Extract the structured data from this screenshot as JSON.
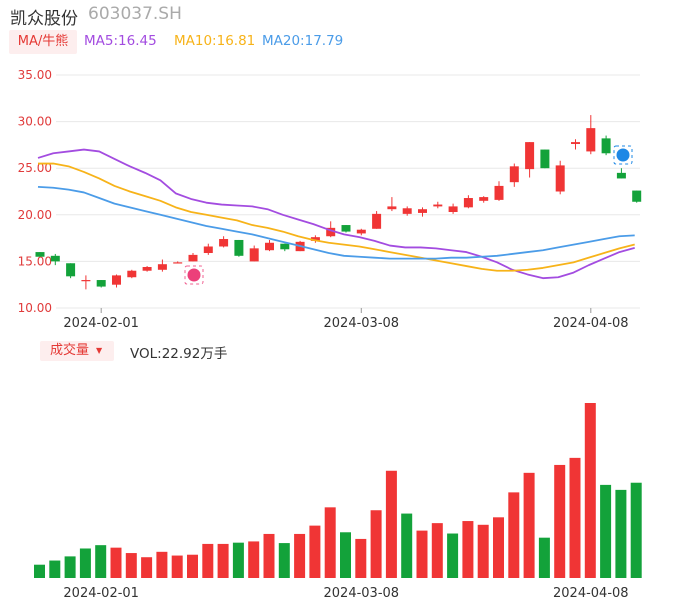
{
  "header": {
    "name": "凯众股份",
    "code": "603037.SH"
  },
  "ma_legend": {
    "tag": "MA/牛熊",
    "ma5": "MA5:16.45",
    "ma10": "MA10:16.81",
    "ma20": "MA20:17.79"
  },
  "volume_legend": {
    "tag": "成交量",
    "value": "VOL:22.92万手"
  },
  "colors": {
    "up": "#f03535",
    "down": "#13a23a",
    "ma5": "#a34ce0",
    "ma10": "#f7b319",
    "ma20": "#4b9ce8",
    "ma_label": "#a34ce0"
  },
  "chart_data": [
    {
      "type": "candlestick",
      "title": "",
      "ylim": [
        10,
        35
      ],
      "yticks": [
        "35.00",
        "30.00",
        "25.00",
        "20.00",
        "15.00",
        "10.00"
      ],
      "xtick_labels": [
        {
          "label": "2024-02-01",
          "index": 4
        },
        {
          "label": "2024-03-08",
          "index": 21
        },
        {
          "label": "2024-04-08",
          "index": 36
        }
      ],
      "candles": [
        {
          "o": 16.0,
          "h": 16.0,
          "l": 15.5,
          "c": 15.5
        },
        {
          "o": 15.6,
          "h": 15.8,
          "l": 14.6,
          "c": 15.0
        },
        {
          "o": 14.8,
          "h": 14.8,
          "l": 13.2,
          "c": 13.4
        },
        {
          "o": 12.9,
          "h": 13.5,
          "l": 12.0,
          "c": 13.0
        },
        {
          "o": 13.0,
          "h": 13.0,
          "l": 12.2,
          "c": 12.3
        },
        {
          "o": 12.5,
          "h": 13.6,
          "l": 12.2,
          "c": 13.5
        },
        {
          "o": 13.3,
          "h": 14.1,
          "l": 13.2,
          "c": 14.0
        },
        {
          "o": 14.0,
          "h": 14.5,
          "l": 13.9,
          "c": 14.4
        },
        {
          "o": 14.1,
          "h": 15.2,
          "l": 13.9,
          "c": 14.7
        },
        {
          "o": 14.8,
          "h": 15.0,
          "l": 14.8,
          "c": 14.9
        },
        {
          "o": 15.0,
          "h": 15.9,
          "l": 15.0,
          "c": 15.7
        },
        {
          "o": 15.9,
          "h": 16.9,
          "l": 15.7,
          "c": 16.6
        },
        {
          "o": 16.6,
          "h": 17.7,
          "l": 16.5,
          "c": 17.4
        },
        {
          "o": 17.3,
          "h": 17.3,
          "l": 15.5,
          "c": 15.6
        },
        {
          "o": 15.0,
          "h": 16.7,
          "l": 15.0,
          "c": 16.4
        },
        {
          "o": 16.2,
          "h": 17.3,
          "l": 16.1,
          "c": 17.0
        },
        {
          "o": 16.9,
          "h": 16.9,
          "l": 16.1,
          "c": 16.3
        },
        {
          "o": 16.1,
          "h": 17.2,
          "l": 16.1,
          "c": 17.1
        },
        {
          "o": 17.2,
          "h": 17.8,
          "l": 17.0,
          "c": 17.6
        },
        {
          "o": 17.7,
          "h": 19.3,
          "l": 17.6,
          "c": 18.6
        },
        {
          "o": 18.9,
          "h": 18.9,
          "l": 18.1,
          "c": 18.2
        },
        {
          "o": 18.0,
          "h": 18.5,
          "l": 17.8,
          "c": 18.4
        },
        {
          "o": 18.5,
          "h": 20.4,
          "l": 18.5,
          "c": 20.1
        },
        {
          "o": 20.6,
          "h": 21.9,
          "l": 20.4,
          "c": 20.9
        },
        {
          "o": 20.1,
          "h": 20.9,
          "l": 19.9,
          "c": 20.7
        },
        {
          "o": 20.2,
          "h": 20.8,
          "l": 19.8,
          "c": 20.6
        },
        {
          "o": 20.9,
          "h": 21.4,
          "l": 20.7,
          "c": 21.1
        },
        {
          "o": 20.3,
          "h": 21.2,
          "l": 20.1,
          "c": 20.9
        },
        {
          "o": 20.8,
          "h": 22.1,
          "l": 20.7,
          "c": 21.8
        },
        {
          "o": 21.5,
          "h": 22.0,
          "l": 21.3,
          "c": 21.9
        },
        {
          "o": 21.6,
          "h": 23.6,
          "l": 21.5,
          "c": 23.1
        },
        {
          "o": 23.5,
          "h": 25.5,
          "l": 23.0,
          "c": 25.2
        },
        {
          "o": 24.9,
          "h": 27.8,
          "l": 24.0,
          "c": 27.8
        },
        {
          "o": 27.0,
          "h": 27.0,
          "l": 25.0,
          "c": 25.0
        },
        {
          "o": 22.5,
          "h": 25.8,
          "l": 22.2,
          "c": 25.3
        },
        {
          "o": 27.6,
          "h": 28.1,
          "l": 27.0,
          "c": 27.8
        },
        {
          "o": 26.8,
          "h": 30.7,
          "l": 26.5,
          "c": 29.3
        },
        {
          "o": 28.2,
          "h": 28.5,
          "l": 26.4,
          "c": 26.6
        },
        {
          "o": 24.5,
          "h": 25.0,
          "l": 23.9,
          "c": 23.9
        },
        {
          "o": 22.6,
          "h": 22.6,
          "l": 21.3,
          "c": 21.4
        }
      ],
      "series": [
        {
          "name": "MA5",
          "values": [
            26.1,
            26.6,
            26.8,
            27.0,
            26.8,
            26.0,
            25.2,
            24.5,
            23.7,
            22.3,
            21.7,
            21.3,
            21.1,
            21.0,
            20.9,
            20.6,
            20.0,
            19.5,
            19.0,
            18.4,
            17.9,
            17.6,
            17.2,
            16.7,
            16.5,
            16.5,
            16.4,
            16.2,
            16.0,
            15.5,
            14.9,
            14.1,
            13.6,
            13.2,
            13.3,
            13.8,
            14.6,
            15.3,
            16.0,
            16.45
          ]
        },
        {
          "name": "MA10",
          "values": [
            25.5,
            25.5,
            25.2,
            24.6,
            23.9,
            23.1,
            22.5,
            22.0,
            21.5,
            20.8,
            20.3,
            20.0,
            19.7,
            19.4,
            18.9,
            18.6,
            18.2,
            17.7,
            17.3,
            17.0,
            16.8,
            16.6,
            16.3,
            16.0,
            15.7,
            15.4,
            15.1,
            14.8,
            14.5,
            14.2,
            14.0,
            14.0,
            14.1,
            14.3,
            14.6,
            14.9,
            15.4,
            15.9,
            16.4,
            16.81
          ]
        },
        {
          "name": "MA20",
          "values": [
            23.0,
            22.9,
            22.7,
            22.4,
            21.8,
            21.2,
            20.8,
            20.4,
            20.0,
            19.6,
            19.2,
            18.8,
            18.5,
            18.2,
            17.9,
            17.5,
            17.1,
            16.7,
            16.3,
            15.9,
            15.6,
            15.5,
            15.4,
            15.3,
            15.3,
            15.3,
            15.3,
            15.4,
            15.4,
            15.5,
            15.6,
            15.8,
            16.0,
            16.2,
            16.5,
            16.8,
            17.1,
            17.4,
            17.7,
            17.79
          ]
        }
      ]
    },
    {
      "type": "bar",
      "title": "",
      "ylabel": "",
      "xtick_labels": [
        {
          "label": "2024-02-01",
          "index": 4
        },
        {
          "label": "2024-03-08",
          "index": 21
        },
        {
          "label": "2024-04-08",
          "index": 36
        }
      ],
      "values": [
        3.2,
        4.2,
        5.2,
        7.1,
        7.9,
        7.3,
        6.0,
        5.0,
        6.3,
        5.4,
        5.6,
        8.2,
        8.2,
        8.5,
        8.8,
        10.6,
        8.4,
        10.6,
        12.6,
        17.0,
        11.0,
        9.4,
        16.3,
        25.8,
        15.5,
        11.4,
        13.2,
        10.7,
        13.7,
        12.8,
        14.6,
        20.6,
        25.3,
        9.7,
        27.2,
        28.9,
        42.1,
        22.4,
        21.2,
        22.92
      ],
      "direction": [
        "down",
        "down",
        "down",
        "down",
        "down",
        "up",
        "up",
        "up",
        "up",
        "up",
        "up",
        "up",
        "up",
        "down",
        "up",
        "up",
        "down",
        "up",
        "up",
        "up",
        "down",
        "up",
        "up",
        "up",
        "down",
        "up",
        "up",
        "down",
        "up",
        "up",
        "up",
        "up",
        "up",
        "down",
        "up",
        "up",
        "up",
        "down",
        "down",
        "down"
      ]
    }
  ]
}
